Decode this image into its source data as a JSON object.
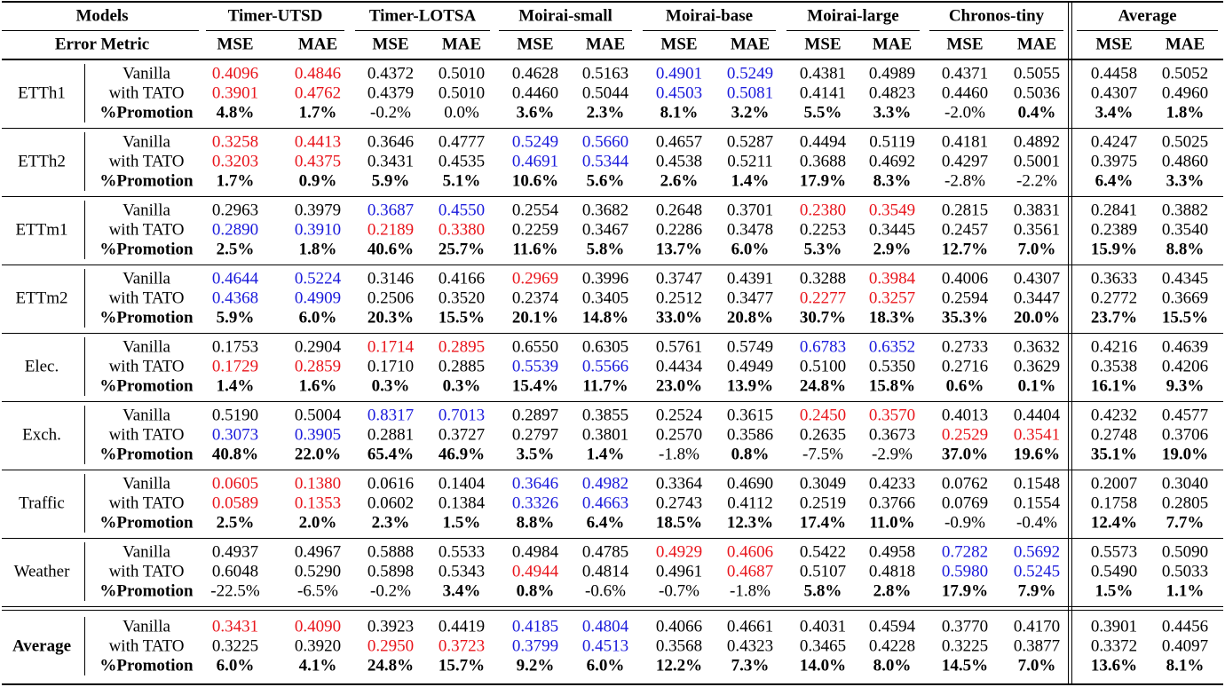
{
  "header": {
    "models": "Models",
    "metric": "Error Metric",
    "groups": [
      {
        "name": "Timer-UTSD",
        "metrics": [
          "MSE",
          "MAE"
        ]
      },
      {
        "name": "Timer-LOTSA",
        "metrics": [
          "MSE",
          "MAE"
        ]
      },
      {
        "name": "Moirai-small",
        "metrics": [
          "MSE",
          "MAE"
        ]
      },
      {
        "name": "Moirai-base",
        "metrics": [
          "MSE",
          "MAE"
        ]
      },
      {
        "name": "Moirai-large",
        "metrics": [
          "MSE",
          "MAE"
        ]
      },
      {
        "name": "Chronos-tiny",
        "metrics": [
          "MSE",
          "MAE"
        ]
      },
      {
        "name": "Average",
        "metrics": [
          "MSE",
          "MAE"
        ]
      }
    ]
  },
  "blocks": [
    {
      "name": "ETTh1",
      "rows": [
        {
          "label": "Vanilla",
          "cells": [
            "0.4096",
            "0.4846",
            "0.4372",
            "0.5010",
            "0.4628",
            "0.5163",
            "0.4901",
            "0.5249",
            "0.4381",
            "0.4989",
            "0.4371",
            "0.5055",
            "0.4458",
            "0.5052"
          ],
          "red": [
            0,
            1
          ],
          "blue": [
            6,
            7
          ]
        },
        {
          "label": "with TATO",
          "cells": [
            "0.3901",
            "0.4762",
            "0.4379",
            "0.5010",
            "0.4460",
            "0.5044",
            "0.4503",
            "0.5081",
            "0.4141",
            "0.4823",
            "0.4460",
            "0.5036",
            "0.4307",
            "0.4960"
          ],
          "red": [
            0,
            1
          ],
          "blue": [
            6,
            7
          ]
        },
        {
          "label": "%Promotion",
          "cells": [
            "4.8%",
            "1.7%",
            "-0.2%",
            "0.0%",
            "3.6%",
            "2.3%",
            "8.1%",
            "3.2%",
            "5.5%",
            "3.3%",
            "-2.0%",
            "0.4%",
            "3.4%",
            "1.8%"
          ],
          "bold": [
            0,
            1,
            4,
            5,
            6,
            7,
            8,
            9,
            11,
            12,
            13
          ]
        }
      ]
    },
    {
      "name": "ETTh2",
      "rows": [
        {
          "label": "Vanilla",
          "cells": [
            "0.3258",
            "0.4413",
            "0.3646",
            "0.4777",
            "0.5249",
            "0.5660",
            "0.4657",
            "0.5287",
            "0.4494",
            "0.5119",
            "0.4181",
            "0.4892",
            "0.4247",
            "0.5025"
          ],
          "red": [
            0,
            1
          ],
          "blue": [
            4,
            5
          ]
        },
        {
          "label": "with TATO",
          "cells": [
            "0.3203",
            "0.4375",
            "0.3431",
            "0.4535",
            "0.4691",
            "0.5344",
            "0.4538",
            "0.5211",
            "0.3688",
            "0.4692",
            "0.4297",
            "0.5001",
            "0.3975",
            "0.4860"
          ],
          "red": [
            0,
            1
          ],
          "blue": [
            4,
            5
          ]
        },
        {
          "label": "%Promotion",
          "cells": [
            "1.7%",
            "0.9%",
            "5.9%",
            "5.1%",
            "10.6%",
            "5.6%",
            "2.6%",
            "1.4%",
            "17.9%",
            "8.3%",
            "-2.8%",
            "-2.2%",
            "6.4%",
            "3.3%"
          ],
          "bold": [
            0,
            1,
            2,
            3,
            4,
            5,
            6,
            7,
            8,
            9,
            12,
            13
          ]
        }
      ]
    },
    {
      "name": "ETTm1",
      "rows": [
        {
          "label": "Vanilla",
          "cells": [
            "0.2963",
            "0.3979",
            "0.3687",
            "0.4550",
            "0.2554",
            "0.3682",
            "0.2648",
            "0.3701",
            "0.2380",
            "0.3549",
            "0.2815",
            "0.3831",
            "0.2841",
            "0.3882"
          ],
          "red": [
            8,
            9
          ],
          "blue": [
            2,
            3
          ]
        },
        {
          "label": "with TATO",
          "cells": [
            "0.2890",
            "0.3910",
            "0.2189",
            "0.3380",
            "0.2259",
            "0.3467",
            "0.2286",
            "0.3478",
            "0.2253",
            "0.3445",
            "0.2457",
            "0.3561",
            "0.2389",
            "0.3540"
          ],
          "red": [
            2,
            3
          ],
          "blue": [
            0,
            1
          ]
        },
        {
          "label": "%Promotion",
          "cells": [
            "2.5%",
            "1.8%",
            "40.6%",
            "25.7%",
            "11.6%",
            "5.8%",
            "13.7%",
            "6.0%",
            "5.3%",
            "2.9%",
            "12.7%",
            "7.0%",
            "15.9%",
            "8.8%"
          ],
          "bold": [
            0,
            1,
            2,
            3,
            4,
            5,
            6,
            7,
            8,
            9,
            10,
            11,
            12,
            13
          ]
        }
      ]
    },
    {
      "name": "ETTm2",
      "rows": [
        {
          "label": "Vanilla",
          "cells": [
            "0.4644",
            "0.5224",
            "0.3146",
            "0.4166",
            "0.2969",
            "0.3996",
            "0.3747",
            "0.4391",
            "0.3288",
            "0.3984",
            "0.4006",
            "0.4307",
            "0.3633",
            "0.4345"
          ],
          "red": [
            4,
            9
          ],
          "blue": [
            0,
            1
          ]
        },
        {
          "label": "with TATO",
          "cells": [
            "0.4368",
            "0.4909",
            "0.2506",
            "0.3520",
            "0.2374",
            "0.3405",
            "0.2512",
            "0.3477",
            "0.2277",
            "0.3257",
            "0.2594",
            "0.3447",
            "0.2772",
            "0.3669"
          ],
          "red": [
            8,
            9
          ],
          "blue": [
            0,
            1
          ]
        },
        {
          "label": "%Promotion",
          "cells": [
            "5.9%",
            "6.0%",
            "20.3%",
            "15.5%",
            "20.1%",
            "14.8%",
            "33.0%",
            "20.8%",
            "30.7%",
            "18.3%",
            "35.3%",
            "20.0%",
            "23.7%",
            "15.5%"
          ],
          "bold": [
            0,
            1,
            2,
            3,
            4,
            5,
            6,
            7,
            8,
            9,
            10,
            11,
            12,
            13
          ]
        }
      ]
    },
    {
      "name": "Elec.",
      "rows": [
        {
          "label": "Vanilla",
          "cells": [
            "0.1753",
            "0.2904",
            "0.1714",
            "0.2895",
            "0.6550",
            "0.6305",
            "0.5761",
            "0.5749",
            "0.6783",
            "0.6352",
            "0.2733",
            "0.3632",
            "0.4216",
            "0.4639"
          ],
          "red": [
            2,
            3
          ],
          "blue": [
            8,
            9
          ]
        },
        {
          "label": "with TATO",
          "cells": [
            "0.1729",
            "0.2859",
            "0.1710",
            "0.2885",
            "0.5539",
            "0.5566",
            "0.4434",
            "0.4949",
            "0.5100",
            "0.5350",
            "0.2716",
            "0.3629",
            "0.3538",
            "0.4206"
          ],
          "red": [
            0,
            1
          ],
          "blue": [
            4,
            5
          ]
        },
        {
          "label": "%Promotion",
          "cells": [
            "1.4%",
            "1.6%",
            "0.3%",
            "0.3%",
            "15.4%",
            "11.7%",
            "23.0%",
            "13.9%",
            "24.8%",
            "15.8%",
            "0.6%",
            "0.1%",
            "16.1%",
            "9.3%"
          ],
          "bold": [
            0,
            1,
            2,
            3,
            4,
            5,
            6,
            7,
            8,
            9,
            10,
            11,
            12,
            13
          ]
        }
      ]
    },
    {
      "name": "Exch.",
      "rows": [
        {
          "label": "Vanilla",
          "cells": [
            "0.5190",
            "0.5004",
            "0.8317",
            "0.7013",
            "0.2897",
            "0.3855",
            "0.2524",
            "0.3615",
            "0.2450",
            "0.3570",
            "0.4013",
            "0.4404",
            "0.4232",
            "0.4577"
          ],
          "red": [
            8,
            9
          ],
          "blue": [
            2,
            3
          ]
        },
        {
          "label": "with TATO",
          "cells": [
            "0.3073",
            "0.3905",
            "0.2881",
            "0.3727",
            "0.2797",
            "0.3801",
            "0.2570",
            "0.3586",
            "0.2635",
            "0.3673",
            "0.2529",
            "0.3541",
            "0.2748",
            "0.3706"
          ],
          "red": [
            10,
            11
          ],
          "blue": [
            0,
            1
          ]
        },
        {
          "label": "%Promotion",
          "cells": [
            "40.8%",
            "22.0%",
            "65.4%",
            "46.9%",
            "3.5%",
            "1.4%",
            "-1.8%",
            "0.8%",
            "-7.5%",
            "-2.9%",
            "37.0%",
            "19.6%",
            "35.1%",
            "19.0%"
          ],
          "bold": [
            0,
            1,
            2,
            3,
            4,
            5,
            7,
            10,
            11,
            12,
            13
          ]
        }
      ]
    },
    {
      "name": "Traffic",
      "rows": [
        {
          "label": "Vanilla",
          "cells": [
            "0.0605",
            "0.1380",
            "0.0616",
            "0.1404",
            "0.3646",
            "0.4982",
            "0.3364",
            "0.4690",
            "0.3049",
            "0.4233",
            "0.0762",
            "0.1548",
            "0.2007",
            "0.3040"
          ],
          "red": [
            0,
            1
          ],
          "blue": [
            4,
            5
          ]
        },
        {
          "label": "with TATO",
          "cells": [
            "0.0589",
            "0.1353",
            "0.0602",
            "0.1384",
            "0.3326",
            "0.4663",
            "0.2743",
            "0.4112",
            "0.2519",
            "0.3766",
            "0.0769",
            "0.1554",
            "0.1758",
            "0.2805"
          ],
          "red": [
            0,
            1
          ],
          "blue": [
            4,
            5
          ]
        },
        {
          "label": "%Promotion",
          "cells": [
            "2.5%",
            "2.0%",
            "2.3%",
            "1.5%",
            "8.8%",
            "6.4%",
            "18.5%",
            "12.3%",
            "17.4%",
            "11.0%",
            "-0.9%",
            "-0.4%",
            "12.4%",
            "7.7%"
          ],
          "bold": [
            0,
            1,
            2,
            3,
            4,
            5,
            6,
            7,
            8,
            9,
            12,
            13
          ]
        }
      ]
    },
    {
      "name": "Weather",
      "rows": [
        {
          "label": "Vanilla",
          "cells": [
            "0.4937",
            "0.4967",
            "0.5888",
            "0.5533",
            "0.4984",
            "0.4785",
            "0.4929",
            "0.4606",
            "0.5422",
            "0.4958",
            "0.7282",
            "0.5692",
            "0.5573",
            "0.5090"
          ],
          "red": [
            6,
            7
          ],
          "blue": [
            10,
            11
          ]
        },
        {
          "label": "with TATO",
          "cells": [
            "0.6048",
            "0.5290",
            "0.5898",
            "0.5343",
            "0.4944",
            "0.4814",
            "0.4961",
            "0.4687",
            "0.5107",
            "0.4818",
            "0.5980",
            "0.5245",
            "0.5490",
            "0.5033"
          ],
          "red": [
            4,
            7
          ],
          "blue": [
            10,
            11
          ]
        },
        {
          "label": "%Promotion",
          "cells": [
            "-22.5%",
            "-6.5%",
            "-0.2%",
            "3.4%",
            "0.8%",
            "-0.6%",
            "-0.7%",
            "-1.8%",
            "5.8%",
            "2.8%",
            "17.9%",
            "7.9%",
            "1.5%",
            "1.1%"
          ],
          "bold": [
            3,
            4,
            8,
            9,
            10,
            11,
            12,
            13
          ]
        }
      ]
    },
    {
      "name": "Average",
      "rows": [
        {
          "label": "Vanilla",
          "cells": [
            "0.3431",
            "0.4090",
            "0.3923",
            "0.4419",
            "0.4185",
            "0.4804",
            "0.4066",
            "0.4661",
            "0.4031",
            "0.4594",
            "0.3770",
            "0.4170",
            "0.3901",
            "0.4456"
          ],
          "red": [
            0,
            1
          ],
          "blue": [
            4,
            5
          ]
        },
        {
          "label": "with TATO",
          "cells": [
            "0.3225",
            "0.3920",
            "0.2950",
            "0.3723",
            "0.3799",
            "0.4513",
            "0.3568",
            "0.4323",
            "0.3465",
            "0.4228",
            "0.3225",
            "0.3877",
            "0.3372",
            "0.4097"
          ],
          "red": [
            2,
            3
          ],
          "blue": [
            4,
            5
          ]
        },
        {
          "label": "%Promotion",
          "cells": [
            "6.0%",
            "4.1%",
            "24.8%",
            "15.7%",
            "9.2%",
            "6.0%",
            "12.2%",
            "7.3%",
            "14.0%",
            "8.0%",
            "14.5%",
            "7.0%",
            "13.6%",
            "8.1%"
          ],
          "bold": [
            0,
            1,
            2,
            3,
            4,
            5,
            6,
            7,
            8,
            9,
            10,
            11,
            12,
            13
          ]
        }
      ]
    }
  ]
}
